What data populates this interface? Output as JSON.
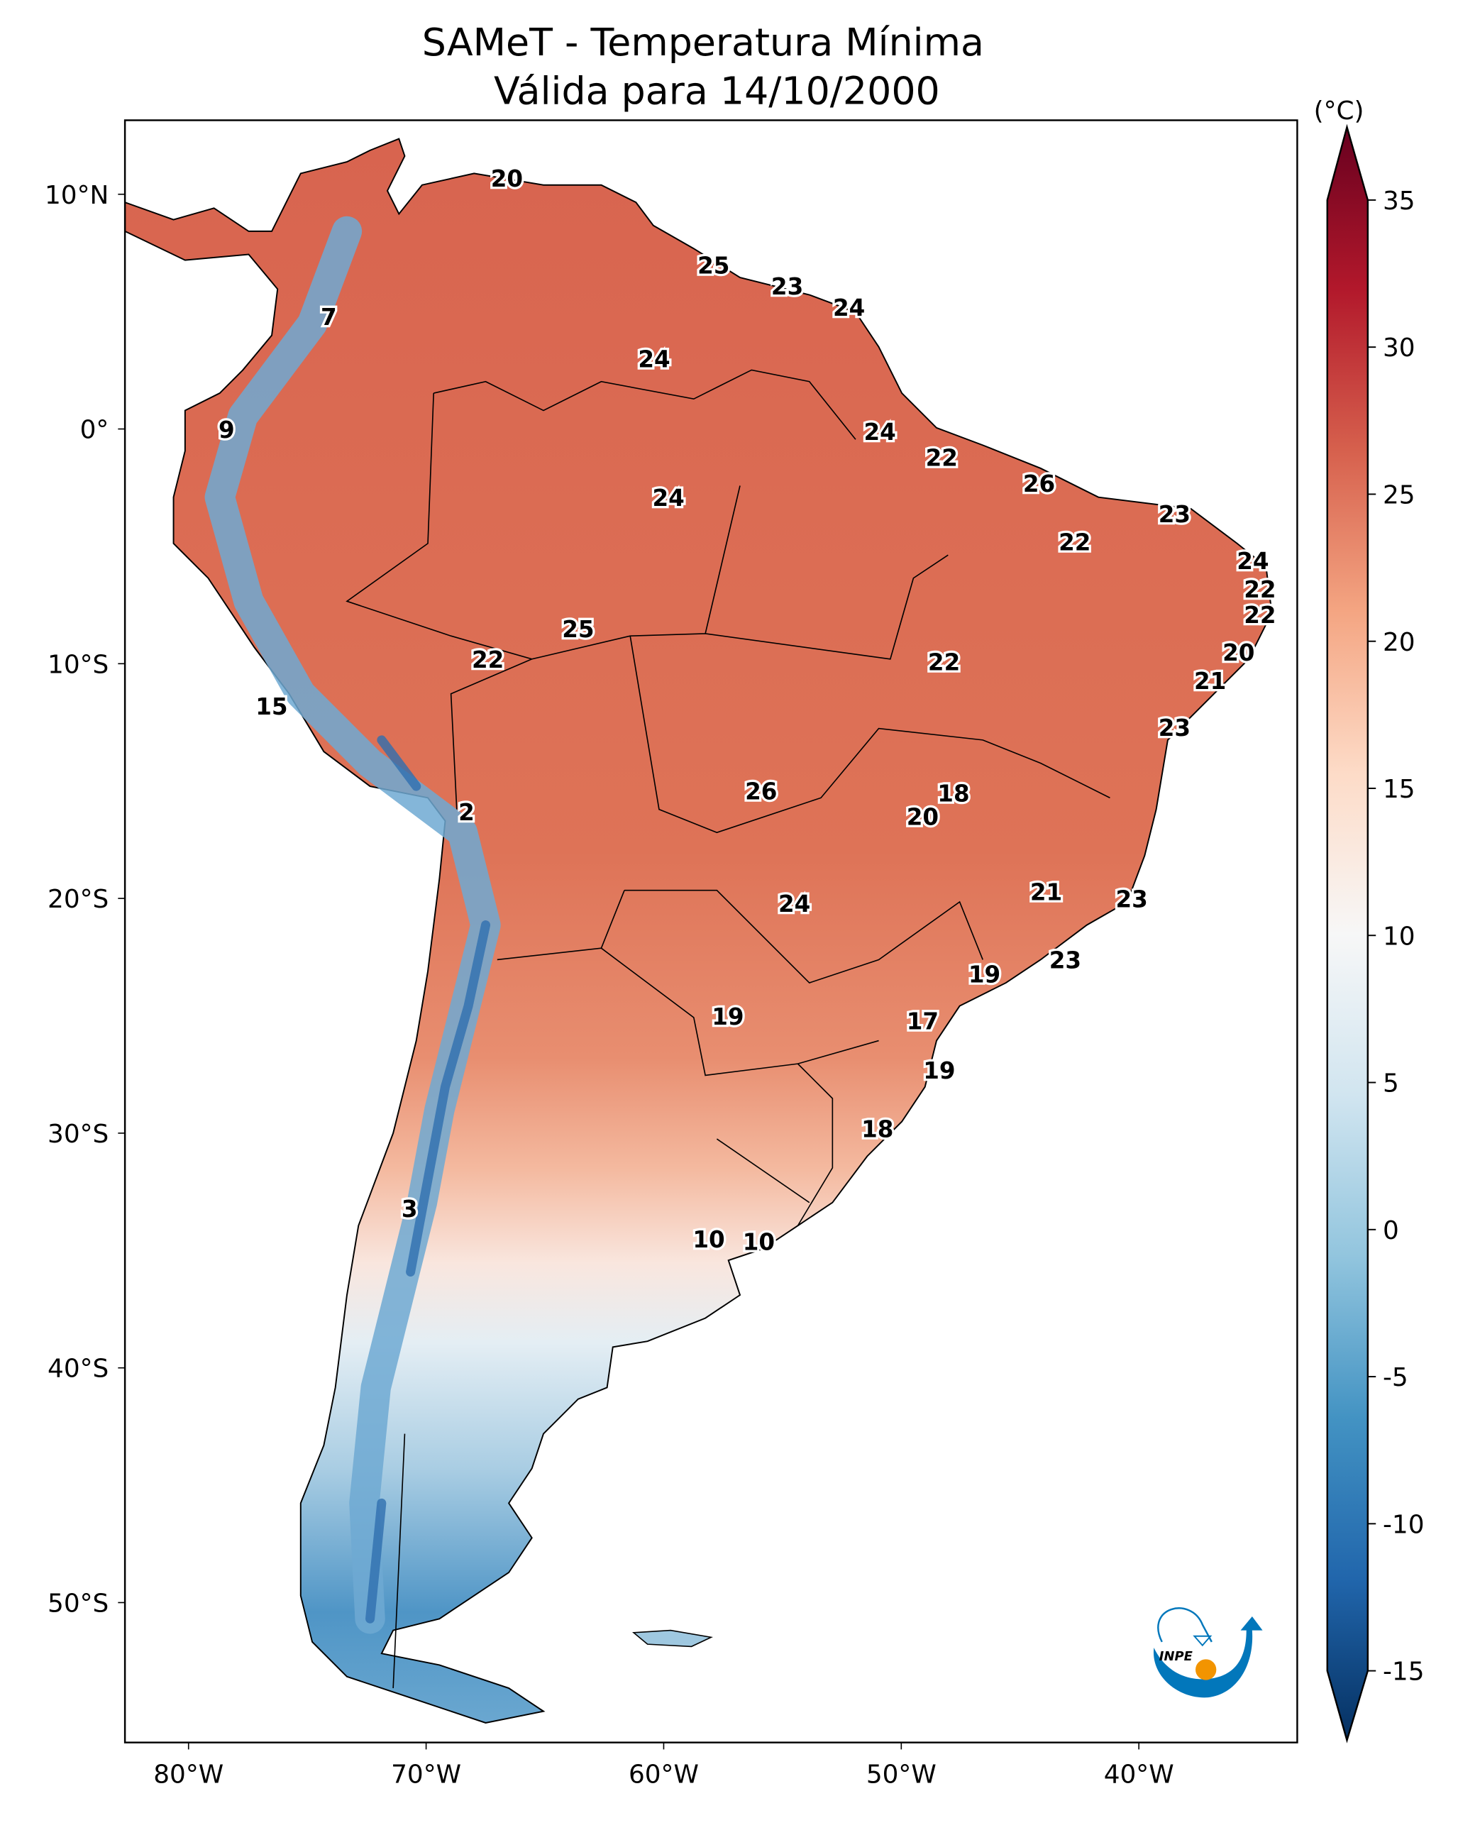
{
  "title": {
    "line1": "SAMeT - Temperatura Mínima",
    "line2": "Válida para 14/10/2000"
  },
  "colorbar": {
    "unit": "(°C)",
    "ticks": [
      35,
      30,
      25,
      20,
      15,
      10,
      5,
      0,
      -5,
      -10,
      -15
    ],
    "range": [
      -15,
      35
    ],
    "extend": "both",
    "colormap": [
      "#053061",
      "#2166ac",
      "#4393c3",
      "#92c5de",
      "#d1e5f0",
      "#f7f7f7",
      "#fddbc7",
      "#f4a582",
      "#d6604d",
      "#b2182b",
      "#67001f"
    ]
  },
  "axes": {
    "lat_ticks": [
      {
        "value": 10,
        "label": "10°N"
      },
      {
        "value": 0,
        "label": "0°"
      },
      {
        "value": -10,
        "label": "10°S"
      },
      {
        "value": -20,
        "label": "20°S"
      },
      {
        "value": -30,
        "label": "30°S"
      },
      {
        "value": -40,
        "label": "40°S"
      },
      {
        "value": -50,
        "label": "50°S"
      }
    ],
    "lon_ticks": [
      {
        "value": -80,
        "label": "80°W"
      },
      {
        "value": -70,
        "label": "70°W"
      },
      {
        "value": -60,
        "label": "60°W"
      },
      {
        "value": -50,
        "label": "50°W"
      },
      {
        "value": -40,
        "label": "40°W"
      }
    ],
    "lon_range": [
      -82.7,
      -33.3
    ],
    "lat_range": [
      -56.0,
      13.2
    ]
  },
  "chart_data": {
    "type": "heatmap",
    "title": "SAMeT - Temperatura Mínima / Válida para 14/10/2000",
    "units": "°C",
    "point_labels": [
      {
        "value": "20",
        "lon": -66.6,
        "lat": 10.6
      },
      {
        "value": "25",
        "lon": -57.9,
        "lat": 6.9
      },
      {
        "value": "23",
        "lon": -54.8,
        "lat": 6.0
      },
      {
        "value": "24",
        "lon": -52.2,
        "lat": 5.1
      },
      {
        "value": "7",
        "lon": -74.1,
        "lat": 4.7
      },
      {
        "value": "24",
        "lon": -60.4,
        "lat": 2.9
      },
      {
        "value": "9",
        "lon": -78.4,
        "lat": -0.1
      },
      {
        "value": "24",
        "lon": -50.9,
        "lat": -0.2
      },
      {
        "value": "22",
        "lon": -48.3,
        "lat": -1.3
      },
      {
        "value": "26",
        "lon": -44.2,
        "lat": -2.4
      },
      {
        "value": "24",
        "lon": -59.8,
        "lat": -3.0
      },
      {
        "value": "23",
        "lon": -38.5,
        "lat": -3.7
      },
      {
        "value": "22",
        "lon": -42.7,
        "lat": -4.9
      },
      {
        "value": "24",
        "lon": -35.2,
        "lat": -5.7
      },
      {
        "value": "22",
        "lon": -34.9,
        "lat": -6.9
      },
      {
        "value": "22",
        "lon": -34.9,
        "lat": -8.0
      },
      {
        "value": "25",
        "lon": -63.6,
        "lat": -8.6
      },
      {
        "value": "20",
        "lon": -35.8,
        "lat": -9.6
      },
      {
        "value": "22",
        "lon": -67.4,
        "lat": -9.9
      },
      {
        "value": "22",
        "lon": -48.2,
        "lat": -10.0
      },
      {
        "value": "21",
        "lon": -37.0,
        "lat": -10.8
      },
      {
        "value": "15",
        "lon": -76.5,
        "lat": -11.9
      },
      {
        "value": "23",
        "lon": -38.5,
        "lat": -12.8
      },
      {
        "value": "26",
        "lon": -55.9,
        "lat": -15.5
      },
      {
        "value": "18",
        "lon": -47.8,
        "lat": -15.6
      },
      {
        "value": "2",
        "lon": -68.3,
        "lat": -16.4
      },
      {
        "value": "20",
        "lon": -49.1,
        "lat": -16.6
      },
      {
        "value": "21",
        "lon": -43.9,
        "lat": -19.8
      },
      {
        "value": "23",
        "lon": -40.3,
        "lat": -20.1
      },
      {
        "value": "24",
        "lon": -54.5,
        "lat": -20.3
      },
      {
        "value": "23",
        "lon": -43.1,
        "lat": -22.7
      },
      {
        "value": "19",
        "lon": -46.5,
        "lat": -23.3
      },
      {
        "value": "19",
        "lon": -57.3,
        "lat": -25.1
      },
      {
        "value": "17",
        "lon": -49.1,
        "lat": -25.3
      },
      {
        "value": "19",
        "lon": -48.4,
        "lat": -27.4
      },
      {
        "value": "18",
        "lon": -51.0,
        "lat": -29.9
      },
      {
        "value": "3",
        "lon": -70.7,
        "lat": -33.3
      },
      {
        "value": "10",
        "lon": -58.1,
        "lat": -34.6
      },
      {
        "value": "10",
        "lon": -56.0,
        "lat": -34.7
      }
    ]
  },
  "logo": {
    "text": "INPE"
  }
}
